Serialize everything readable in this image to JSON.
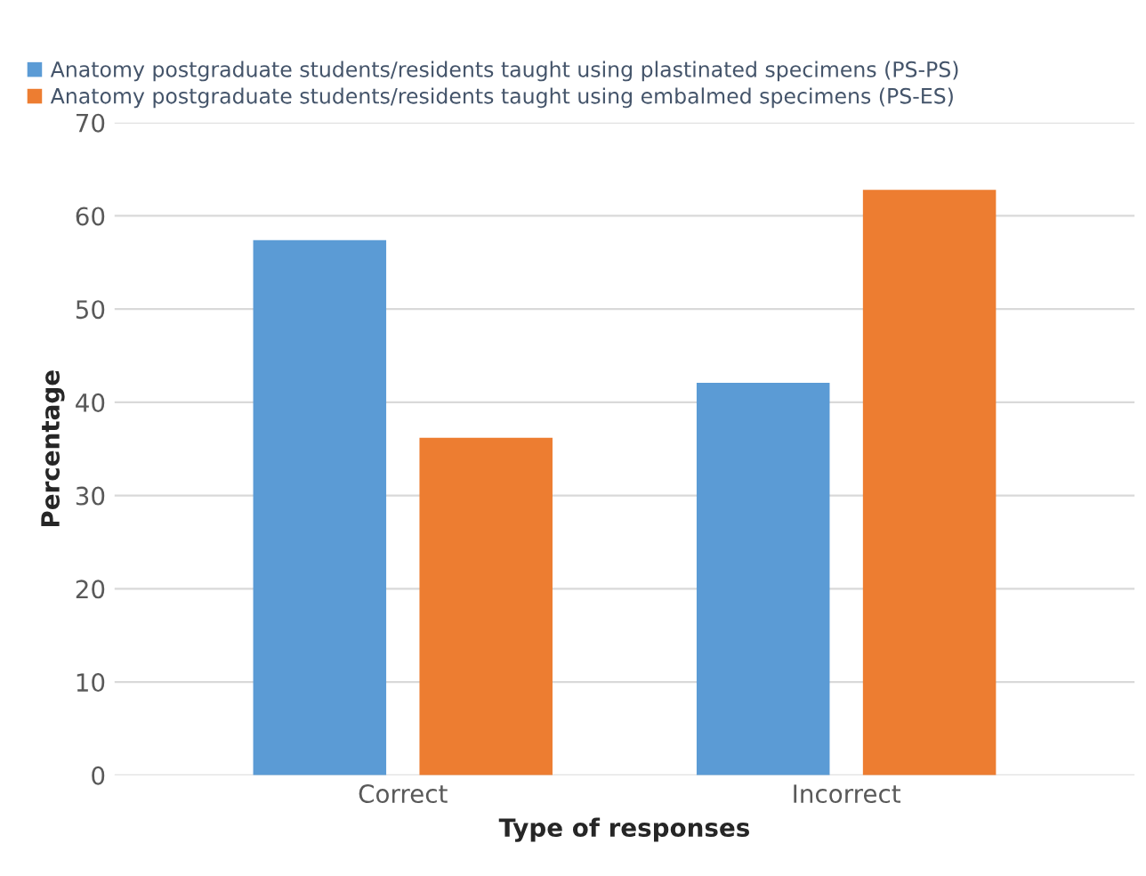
{
  "chart_data": {
    "type": "bar",
    "xlabel": "Type of responses",
    "ylabel": "Percentage",
    "categories": [
      "Correct",
      "Incorrect"
    ],
    "series": [
      {
        "name": "Anatomy postgraduate students/residents taught using plastinated specimens (PS-PS)",
        "color": "#5b9bd5",
        "values": [
          57.4,
          42.1
        ]
      },
      {
        "name": "Anatomy postgraduate students/residents taught using embalmed specimens (PS-ES)",
        "color": "#ed7d31",
        "values": [
          36.2,
          62.8
        ]
      }
    ],
    "ylim": [
      0,
      70
    ],
    "yticks": [
      0,
      10,
      20,
      30,
      40,
      50,
      60,
      70
    ],
    "grid": "y",
    "legend": "top left"
  }
}
